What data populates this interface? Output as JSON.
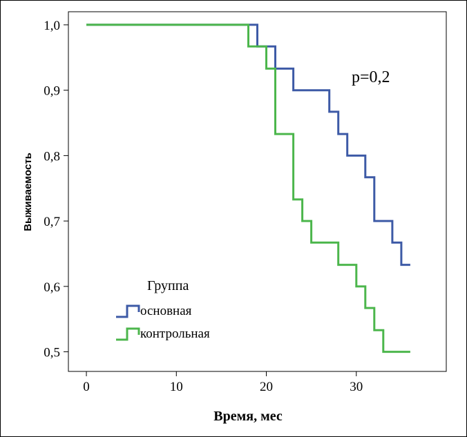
{
  "chart_data": {
    "type": "line",
    "step": true,
    "title": "",
    "xlabel": "Время, мес",
    "ylabel": "Выживаемость",
    "xlim": [
      -2,
      40
    ],
    "ylim": [
      0.47,
      1.02
    ],
    "xticks": [
      0,
      10,
      20,
      30
    ],
    "xtick_labels": [
      "0",
      "10",
      "20",
      "30"
    ],
    "yticks": [
      0.5,
      0.6,
      0.7,
      0.8,
      0.9,
      1.0
    ],
    "ytick_labels": [
      "0,5",
      "0,6",
      "0,7",
      "0,8",
      "0,9",
      "1,0"
    ],
    "grid": false,
    "annotation": "p=0,2",
    "legend": {
      "title": "Группа",
      "position": "bottom-left"
    },
    "series": [
      {
        "name": "основная",
        "color": "#3d5aa6",
        "x": [
          0,
          19,
          21,
          23,
          27,
          28,
          29,
          31,
          32,
          34,
          35,
          36
        ],
        "y": [
          1.0,
          0.967,
          0.933,
          0.9,
          0.867,
          0.833,
          0.8,
          0.767,
          0.7,
          0.667,
          0.633,
          0.633
        ]
      },
      {
        "name": "контрольная",
        "color": "#4cb64c",
        "x": [
          0,
          18,
          20,
          21,
          23,
          24,
          25,
          28,
          30,
          31,
          32,
          33,
          36
        ],
        "y": [
          1.0,
          0.967,
          0.933,
          0.833,
          0.733,
          0.7,
          0.667,
          0.633,
          0.6,
          0.567,
          0.533,
          0.5,
          0.5
        ]
      }
    ]
  }
}
